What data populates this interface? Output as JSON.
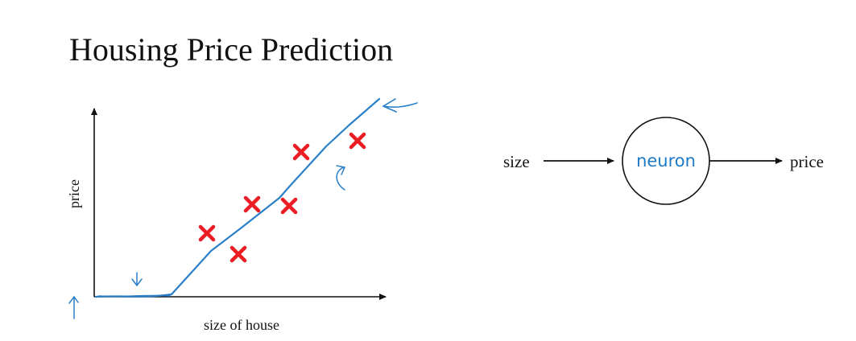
{
  "title": "Housing Price Prediction",
  "plot": {
    "ylabel": "price",
    "xlabel": "size of house"
  },
  "network": {
    "input_label": "size",
    "neuron_label": "neuron",
    "output_label": "price"
  },
  "colors": {
    "text": "#111111",
    "ink": "#2a7fc9",
    "mark": "#ea1c24",
    "neuron_text": "#1f7ac6"
  }
}
